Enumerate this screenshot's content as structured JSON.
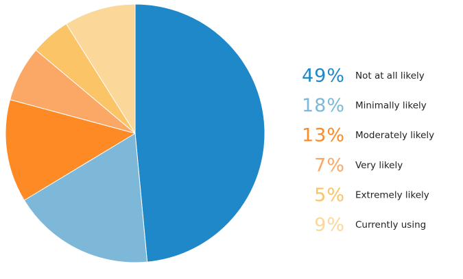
{
  "chart_data": {
    "type": "pie",
    "title": "",
    "slices": [
      {
        "label": "Not at all likely",
        "value": 49,
        "value_text": "49%",
        "color": "#1f88c9"
      },
      {
        "label": "Minimally likely",
        "value": 18,
        "value_text": "18%",
        "color": "#7db8d9"
      },
      {
        "label": "Moderately likely",
        "value": 13,
        "value_text": "13%",
        "color": "#fd8a25"
      },
      {
        "label": "Very likely",
        "value": 7,
        "value_text": "7%",
        "color": "#fba867"
      },
      {
        "label": "Extremely likely",
        "value": 5,
        "value_text": "5%",
        "color": "#fbc466"
      },
      {
        "label": "Currently using",
        "value": 9,
        "value_text": "9%",
        "color": "#fbd89a"
      }
    ],
    "start_angle_deg": 0,
    "direction": "clockwise",
    "slice_border_color": "#ffffff",
    "legend": {
      "position": "right"
    }
  }
}
